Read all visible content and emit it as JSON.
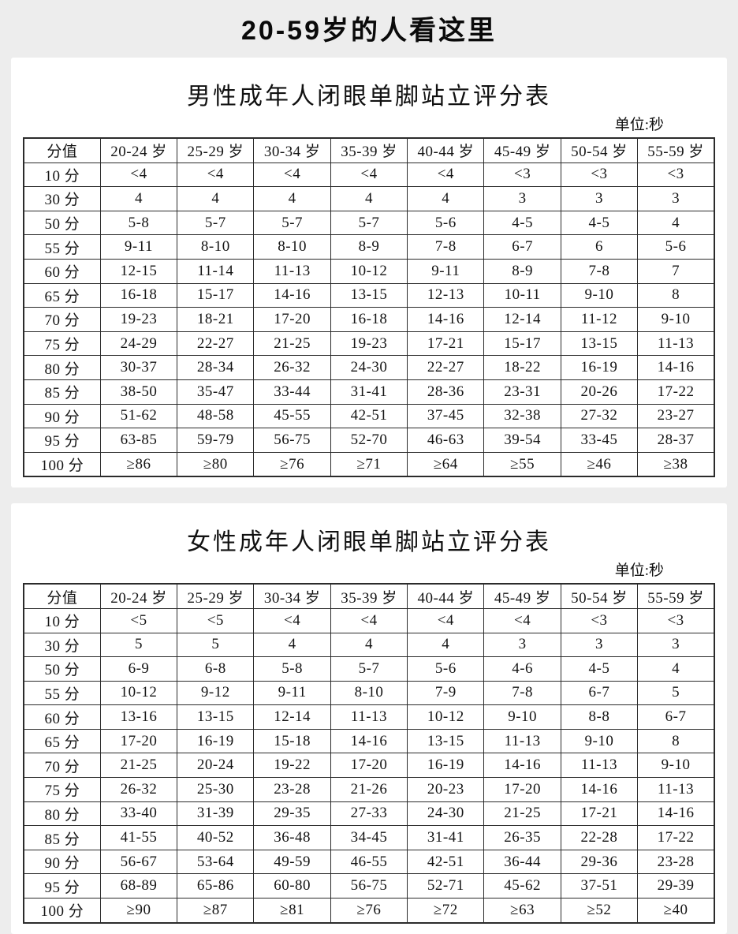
{
  "page_title": "20-59岁的人看这里",
  "tables": {
    "male": {
      "title": "男性成年人闭眼单脚站立评分表",
      "unit_label": "单位:秒",
      "columns": [
        "分值",
        "20-24 岁",
        "25-29 岁",
        "30-34 岁",
        "35-39 岁",
        "40-44 岁",
        "45-49 岁",
        "50-54 岁",
        "55-59 岁"
      ],
      "rows": [
        {
          "label": "10 分",
          "values": [
            "<4",
            "<4",
            "<4",
            "<4",
            "<4",
            "<3",
            "<3",
            "<3"
          ]
        },
        {
          "label": "30 分",
          "values": [
            "4",
            "4",
            "4",
            "4",
            "4",
            "3",
            "3",
            "3"
          ]
        },
        {
          "label": "50 分",
          "values": [
            "5-8",
            "5-7",
            "5-7",
            "5-7",
            "5-6",
            "4-5",
            "4-5",
            "4"
          ]
        },
        {
          "label": "55 分",
          "values": [
            "9-11",
            "8-10",
            "8-10",
            "8-9",
            "7-8",
            "6-7",
            "6",
            "5-6"
          ]
        },
        {
          "label": "60 分",
          "values": [
            "12-15",
            "11-14",
            "11-13",
            "10-12",
            "9-11",
            "8-9",
            "7-8",
            "7"
          ]
        },
        {
          "label": "65 分",
          "values": [
            "16-18",
            "15-17",
            "14-16",
            "13-15",
            "12-13",
            "10-11",
            "9-10",
            "8"
          ]
        },
        {
          "label": "70 分",
          "values": [
            "19-23",
            "18-21",
            "17-20",
            "16-18",
            "14-16",
            "12-14",
            "11-12",
            "9-10"
          ]
        },
        {
          "label": "75 分",
          "values": [
            "24-29",
            "22-27",
            "21-25",
            "19-23",
            "17-21",
            "15-17",
            "13-15",
            "11-13"
          ]
        },
        {
          "label": "80 分",
          "values": [
            "30-37",
            "28-34",
            "26-32",
            "24-30",
            "22-27",
            "18-22",
            "16-19",
            "14-16"
          ]
        },
        {
          "label": "85 分",
          "values": [
            "38-50",
            "35-47",
            "33-44",
            "31-41",
            "28-36",
            "23-31",
            "20-26",
            "17-22"
          ]
        },
        {
          "label": "90 分",
          "values": [
            "51-62",
            "48-58",
            "45-55",
            "42-51",
            "37-45",
            "32-38",
            "27-32",
            "23-27"
          ]
        },
        {
          "label": "95 分",
          "values": [
            "63-85",
            "59-79",
            "56-75",
            "52-70",
            "46-63",
            "39-54",
            "33-45",
            "28-37"
          ]
        },
        {
          "label": "100 分",
          "values": [
            "≥86",
            "≥80",
            "≥76",
            "≥71",
            "≥64",
            "≥55",
            "≥46",
            "≥38"
          ]
        }
      ]
    },
    "female": {
      "title": "女性成年人闭眼单脚站立评分表",
      "unit_label": "单位:秒",
      "columns": [
        "分值",
        "20-24 岁",
        "25-29 岁",
        "30-34 岁",
        "35-39 岁",
        "40-44 岁",
        "45-49 岁",
        "50-54 岁",
        "55-59 岁"
      ],
      "rows": [
        {
          "label": "10 分",
          "values": [
            "<5",
            "<5",
            "<4",
            "<4",
            "<4",
            "<4",
            "<3",
            "<3"
          ]
        },
        {
          "label": "30 分",
          "values": [
            "5",
            "5",
            "4",
            "4",
            "4",
            "3",
            "3",
            "3"
          ]
        },
        {
          "label": "50 分",
          "values": [
            "6-9",
            "6-8",
            "5-8",
            "5-7",
            "5-6",
            "4-6",
            "4-5",
            "4"
          ]
        },
        {
          "label": "55 分",
          "values": [
            "10-12",
            "9-12",
            "9-11",
            "8-10",
            "7-9",
            "7-8",
            "6-7",
            "5"
          ]
        },
        {
          "label": "60 分",
          "values": [
            "13-16",
            "13-15",
            "12-14",
            "11-13",
            "10-12",
            "9-10",
            "8-8",
            "6-7"
          ]
        },
        {
          "label": "65 分",
          "values": [
            "17-20",
            "16-19",
            "15-18",
            "14-16",
            "13-15",
            "11-13",
            "9-10",
            "8"
          ]
        },
        {
          "label": "70 分",
          "values": [
            "21-25",
            "20-24",
            "19-22",
            "17-20",
            "16-19",
            "14-16",
            "11-13",
            "9-10"
          ]
        },
        {
          "label": "75 分",
          "values": [
            "26-32",
            "25-30",
            "23-28",
            "21-26",
            "20-23",
            "17-20",
            "14-16",
            "11-13"
          ]
        },
        {
          "label": "80 分",
          "values": [
            "33-40",
            "31-39",
            "29-35",
            "27-33",
            "24-30",
            "21-25",
            "17-21",
            "14-16"
          ]
        },
        {
          "label": "85 分",
          "values": [
            "41-55",
            "40-52",
            "36-48",
            "34-45",
            "31-41",
            "26-35",
            "22-28",
            "17-22"
          ]
        },
        {
          "label": "90 分",
          "values": [
            "56-67",
            "53-64",
            "49-59",
            "46-55",
            "42-51",
            "36-44",
            "29-36",
            "23-28"
          ]
        },
        {
          "label": "95 分",
          "values": [
            "68-89",
            "65-86",
            "60-80",
            "56-75",
            "52-71",
            "45-62",
            "37-51",
            "29-39"
          ]
        },
        {
          "label": "100 分",
          "values": [
            "≥90",
            "≥87",
            "≥81",
            "≥76",
            "≥72",
            "≥63",
            "≥52",
            "≥40"
          ]
        }
      ]
    }
  }
}
